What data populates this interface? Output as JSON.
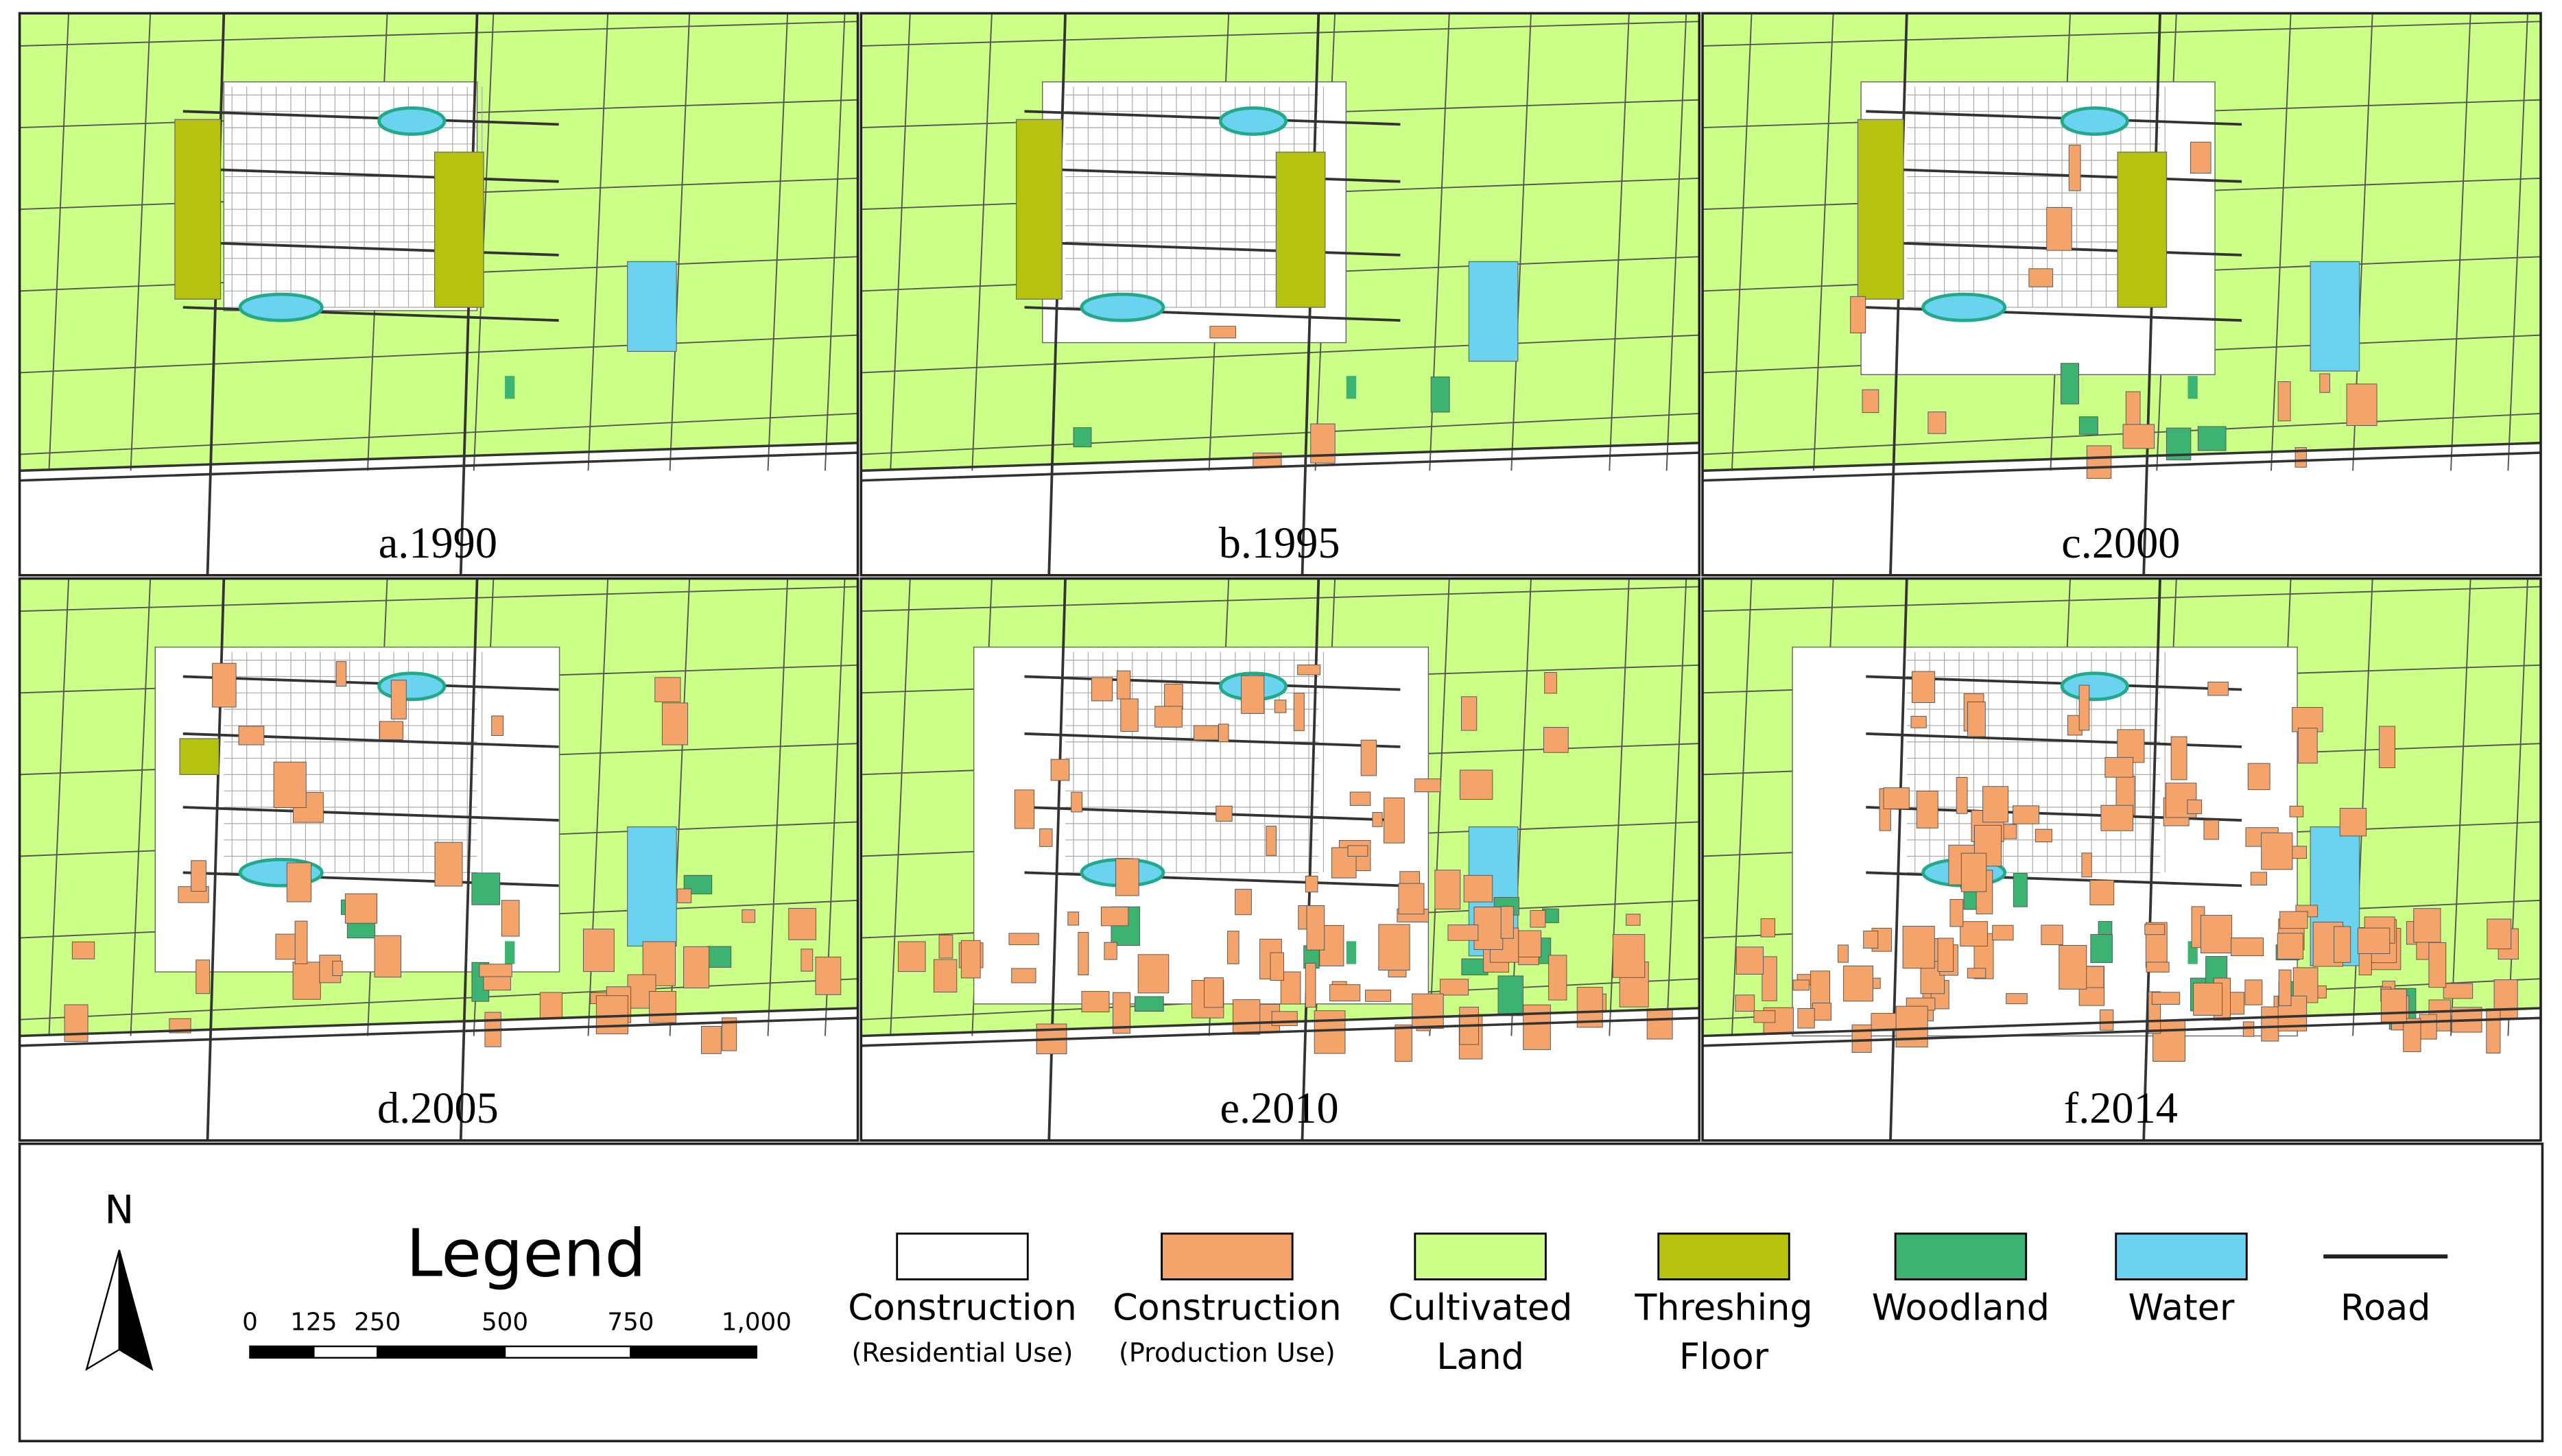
{
  "panels": [
    {
      "label": "a.1990"
    },
    {
      "label": "b.1995"
    },
    {
      "label": "c.2000"
    },
    {
      "label": "d.2005"
    },
    {
      "label": "e.2010"
    },
    {
      "label": "f.2014"
    }
  ],
  "legend": {
    "title": "Legend",
    "north": "N",
    "scale_labels": [
      "0",
      "125",
      "250",
      "500",
      "750",
      "1,000"
    ],
    "items": [
      {
        "lines": [
          "Construction",
          "(Residential Use)"
        ],
        "color": "#ffffff"
      },
      {
        "lines": [
          "Construction",
          "(Production Use)"
        ],
        "color": "#f4a46a"
      },
      {
        "lines": [
          "Cultivated",
          "Land"
        ],
        "color": "#ccff88"
      },
      {
        "lines": [
          "Threshing",
          "Floor"
        ],
        "color": "#b5c30f"
      },
      {
        "lines": [
          "Woodland"
        ],
        "color": "#3cb371"
      },
      {
        "lines": [
          "Water"
        ],
        "color": "#6ad4f0"
      },
      {
        "lines": [
          "Road"
        ],
        "color": "#222222"
      }
    ]
  }
}
